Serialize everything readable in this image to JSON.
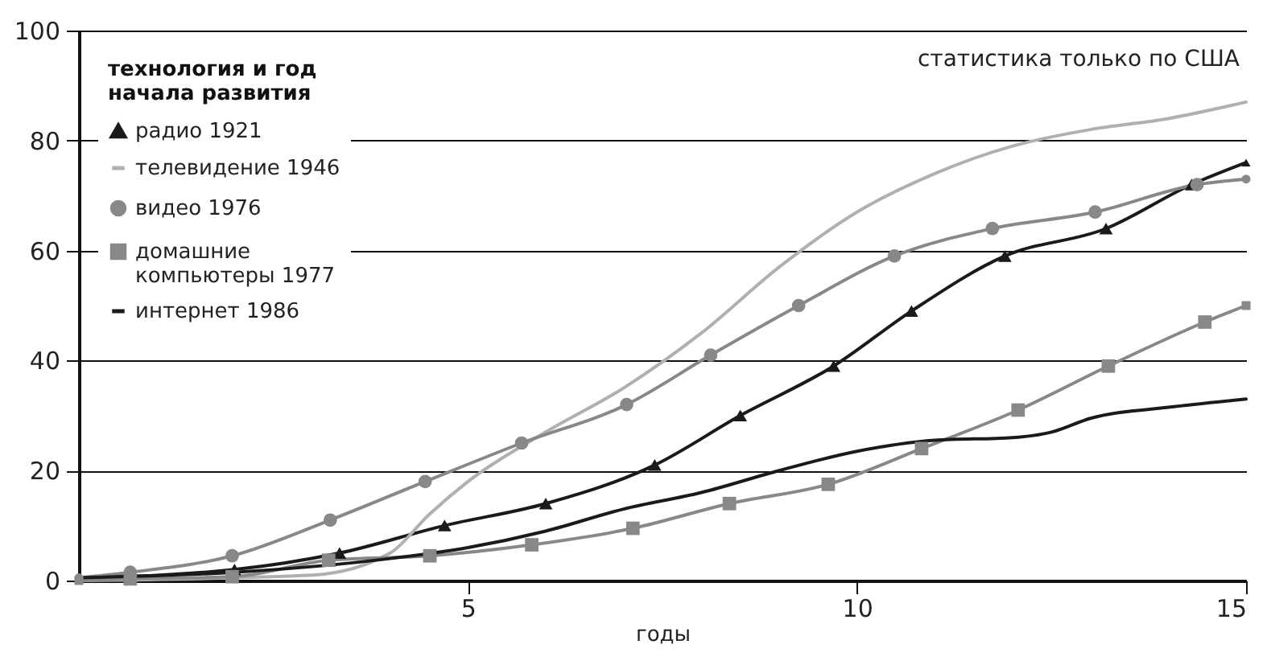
{
  "chart_data": {
    "type": "line",
    "xlabel": "годы",
    "legend_title": "технология и год начала развития",
    "annotations": [
      "статистика только по США"
    ],
    "xlim": [
      0,
      15
    ],
    "xticks": [
      5,
      10,
      15
    ],
    "ylim": [
      0,
      100
    ],
    "yticks": [
      0,
      20,
      40,
      60,
      80,
      100
    ],
    "grid": "y",
    "legend": "top left",
    "series": [
      {
        "name": "радио 1921",
        "color": "#1a1a1a",
        "marker": "triangle",
        "x": [
          0,
          2.0,
          3.35,
          4.7,
          6.0,
          7.4,
          8.5,
          9.7,
          10.7,
          11.9,
          13.2,
          14.3,
          15
        ],
        "values": [
          0.5,
          2,
          5,
          10,
          14,
          21,
          30,
          39,
          49,
          59,
          64,
          72,
          76
        ]
      },
      {
        "name": "телевидение 1946",
        "color": "#b0b0b0",
        "marker": "none",
        "x": [
          0,
          3,
          4,
          4.5,
          5,
          6,
          7,
          8,
          9,
          10,
          11,
          12,
          13,
          14,
          15
        ],
        "values": [
          0,
          1,
          5,
          12,
          18,
          27,
          35,
          45,
          57,
          67,
          74,
          79,
          82,
          84,
          87
        ]
      },
      {
        "name": "видео 1976",
        "color": "#888888",
        "marker": "circle",
        "x": [
          0,
          0.66,
          1.97,
          3.23,
          4.45,
          5.69,
          7.04,
          8.12,
          9.25,
          10.48,
          11.74,
          13.06,
          14.37,
          15
        ],
        "values": [
          0.5,
          1.5,
          4.5,
          11,
          18,
          25,
          32,
          41,
          50,
          59,
          64,
          67,
          72,
          73
        ]
      },
      {
        "name": "домашние компьютеры 1977",
        "color": "#888888",
        "marker": "square",
        "x": [
          0,
          0.66,
          1.97,
          3.21,
          4.51,
          5.82,
          7.12,
          8.36,
          9.63,
          10.83,
          12.07,
          13.23,
          14.47,
          15
        ],
        "values": [
          0,
          0.3,
          0.7,
          3.7,
          4.5,
          6.5,
          9.5,
          14,
          17.5,
          24,
          31,
          39,
          47,
          50
        ]
      },
      {
        "name": "интернет 1986",
        "color": "#1a1a1a",
        "marker": "none",
        "x": [
          0,
          2,
          4,
          5,
          6,
          7,
          8,
          9,
          10,
          11,
          12,
          12.5,
          13,
          14,
          15
        ],
        "values": [
          0.5,
          1.5,
          4,
          6,
          9,
          13,
          16,
          20,
          23.5,
          25.5,
          26,
          27,
          29.5,
          31.5,
          33
        ]
      }
    ]
  }
}
